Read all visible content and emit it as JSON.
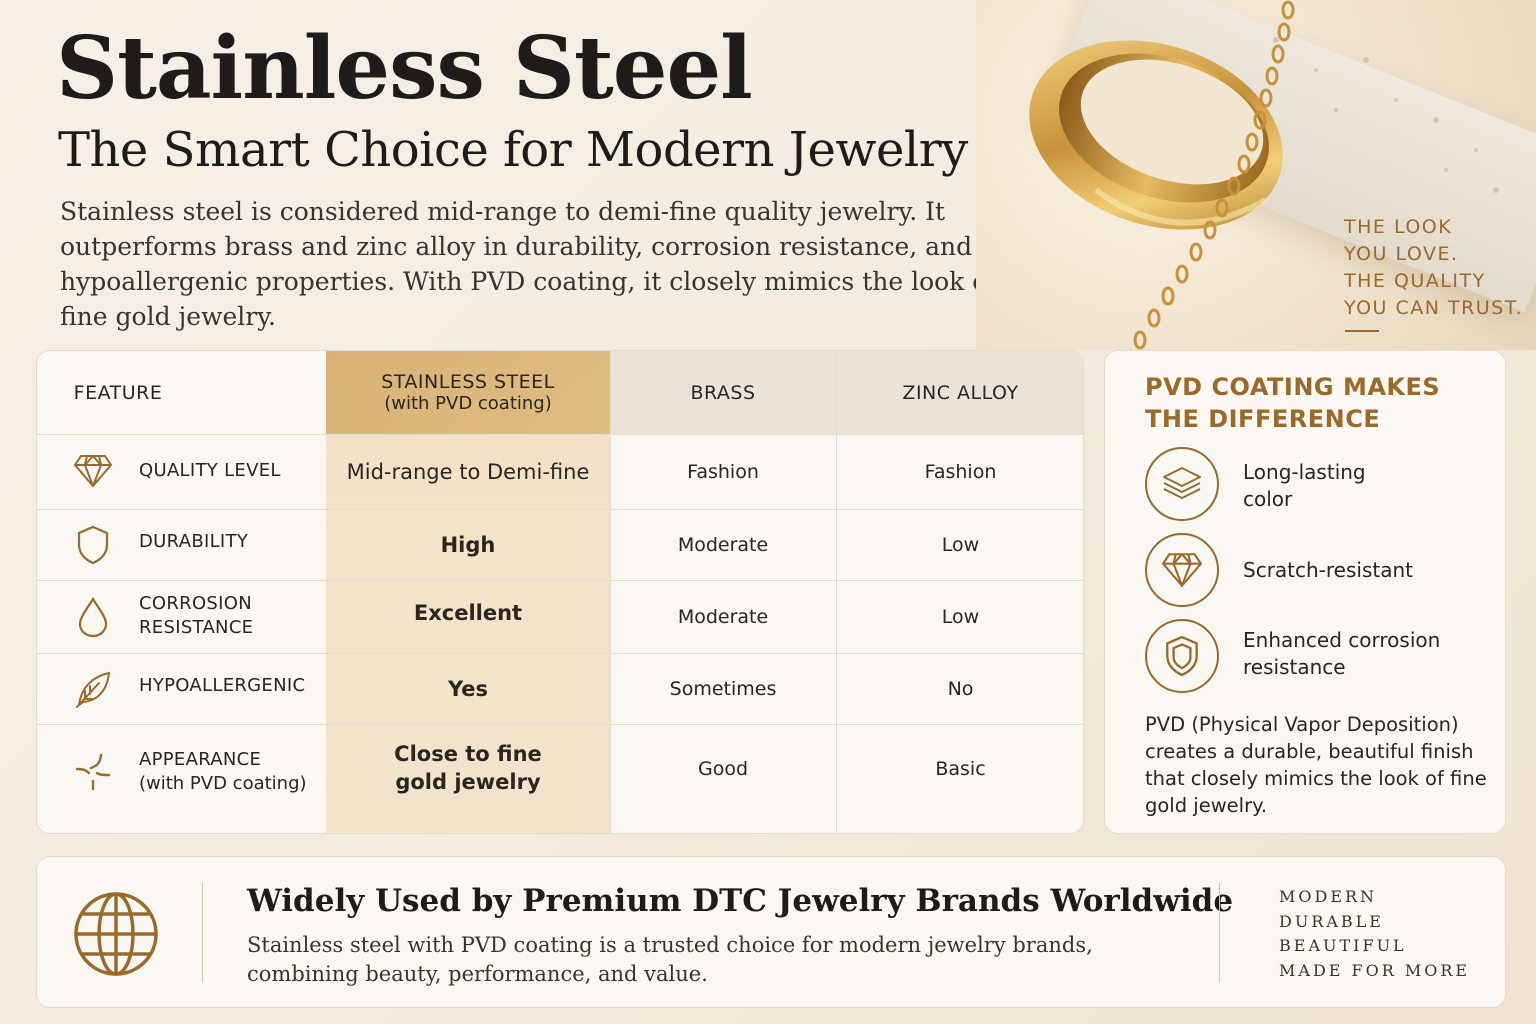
{
  "header": {
    "title": "Stainless Steel",
    "subtitle": "The Smart Choice for Modern Jewelry",
    "intro": "Stainless steel is considered mid-range to demi-fine quality jewelry. It outperforms brass and zinc alloy in durability, corrosion resistance, and hypoallergenic properties. With PVD coating, it closely mimics the look of fine gold jewelry."
  },
  "tagline": [
    "THE LOOK",
    "YOU LOVE.",
    "THE QUALITY",
    "YOU CAN TRUST."
  ],
  "table": {
    "headers": {
      "feature": "FEATURE",
      "stainless": "STAINLESS STEEL",
      "stainless_sub": "(with PVD coating)",
      "brass": "BRASS",
      "zinc": "ZINC ALLOY"
    },
    "rows": [
      {
        "icon": "diamond-icon",
        "label": "QUALITY LEVEL",
        "label_sub": "",
        "stainless": "Mid-range to Demi-fine",
        "brass": "Fashion",
        "zinc": "Fashion"
      },
      {
        "icon": "shield-icon",
        "label": "DURABILITY",
        "label_sub": "",
        "stainless": "High",
        "brass": "Moderate",
        "zinc": "Low"
      },
      {
        "icon": "droplet-icon",
        "label": "CORROSION RESISTANCE",
        "label_sub": "",
        "stainless": "Excellent",
        "brass": "Moderate",
        "zinc": "Low"
      },
      {
        "icon": "leaf-icon",
        "label": "HYPOALLERGENIC",
        "label_sub": "",
        "stainless": "Yes",
        "brass": "Sometimes",
        "zinc": "No"
      },
      {
        "icon": "sparkle-icon",
        "label": "APPEARANCE",
        "label_sub": "(with PVD coating)",
        "stainless": "Close to fine gold jewelry",
        "brass": "Good",
        "zinc": "Basic"
      }
    ]
  },
  "pvd": {
    "title": "PVD COATING MAKES THE DIFFERENCE",
    "features": [
      {
        "icon": "layers-icon",
        "label": "Long-lasting color"
      },
      {
        "icon": "diamond-icon",
        "label": "Scratch-resistant"
      },
      {
        "icon": "shield-icon",
        "label": "Enhanced corrosion resistance"
      }
    ],
    "note": "PVD (Physical Vapor Deposition) creates a durable, beautiful finish that closely mimics the look of fine gold jewelry."
  },
  "footer": {
    "icon": "globe-icon",
    "title": "Widely Used by Premium DTC Jewelry Brands Worldwide",
    "text": "Stainless steel with PVD coating is a trusted choice for modern jewelry brands, combining beauty, performance, and value.",
    "words": [
      "MODERN",
      "DURABLE",
      "BEAUTIFUL",
      "MADE FOR MORE"
    ]
  },
  "colors": {
    "accent_gold": "#9a6a2c",
    "highlight_header": "#d9b274",
    "highlight_column": "#f3e2c6",
    "background": "#f5ede2"
  }
}
